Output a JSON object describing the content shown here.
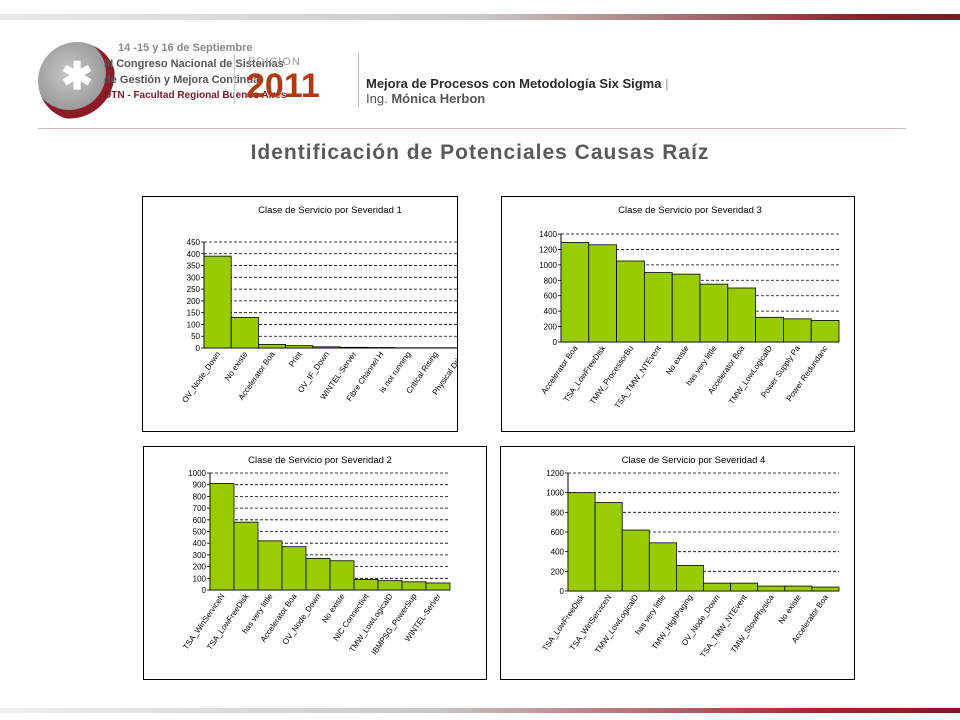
{
  "header": {
    "logo": {
      "line1": "14 -15 y 16 de Septiembre",
      "line2": "III Congreso Nacional de Sistemas",
      "line3": "de Gestión y Mejora Continua",
      "line4": "UTN - Facultad Regional Buenos Aires",
      "edition_label": "EDICION",
      "year": "2011"
    },
    "title": "Mejora de Procesos con Metodología Six Sigma",
    "separator": "|",
    "subtitle_prefix": "Ing.",
    "subtitle_name": "Mónica Herbon"
  },
  "slide_title": "Identificación de Potenciales Causas Raíz",
  "colors": {
    "bar": "#99cc00",
    "bar_stroke": "#000000",
    "accent": "#7a1a25",
    "title": "#5a5a5a"
  },
  "chart_data": [
    {
      "type": "bar",
      "title": "Clase de Servicio por Severidad 1",
      "categories": [
        "OV_Node_Down",
        "No existe",
        "Accelerator Boa",
        "Print",
        "OV_IF_Down",
        "WINTEL-Server",
        "Fibre Channel H",
        "is not running",
        "Critical Rising",
        "Physical Drive"
      ],
      "values": [
        390,
        130,
        15,
        10,
        5,
        3,
        2,
        1,
        1,
        1
      ],
      "ylim": [
        0,
        450
      ],
      "yticks": [
        "0",
        "50",
        "100",
        "150",
        "200",
        "250",
        "300",
        "350",
        "400",
        "450"
      ],
      "grid": true
    },
    {
      "type": "bar",
      "title": "Clase de Servicio por Severidad 3",
      "categories": [
        "Accelerator Boa",
        "TSA_LowFreeDisk",
        "TMW_ProcessorBu",
        "TSA_TMW_NTEvent",
        "No existe",
        "has very little",
        "Accelerator Boa",
        "TMW_LowLogicalD",
        "Power Supply Pa",
        "Power Redundanc"
      ],
      "values": [
        1290,
        1260,
        1050,
        900,
        880,
        750,
        700,
        320,
        300,
        280
      ],
      "ylim": [
        0,
        1400
      ],
      "yticks": [
        "0",
        "200",
        "400",
        "600",
        "800",
        "1000",
        "1200",
        "1400"
      ],
      "grid": true
    },
    {
      "type": "bar",
      "title": "Clase de Servicio por Severidad 2",
      "categories": [
        "TSA_WinServiceN",
        "TSA_LowFreeDisk",
        "has very little",
        "Accelerator Boa",
        "OV_Node_Down",
        "No existe",
        "NIC Connectivit",
        "TMW_LowLogicalD",
        "IBMPSG_PowerSup",
        "WINTEL-Server"
      ],
      "values": [
        910,
        580,
        420,
        370,
        270,
        250,
        90,
        80,
        70,
        60
      ],
      "ylim": [
        0,
        1000
      ],
      "yticks": [
        "0",
        "100",
        "200",
        "300",
        "400",
        "500",
        "600",
        "700",
        "800",
        "900",
        "1000"
      ],
      "grid": true
    },
    {
      "type": "bar",
      "title": "Clase de Servicio por Severidad 4",
      "categories": [
        "TSA_LowFreeDisk",
        "TSA_WinServiceN",
        "TMW_LowLogicalD",
        "has very little",
        "TMW_HighPaging",
        "OV_Node_Down",
        "TSA_TMW_NTEvent",
        "TMW_SlowPhysica",
        "No existe",
        "Accelerator Boa"
      ],
      "values": [
        1000,
        900,
        620,
        490,
        260,
        80,
        80,
        50,
        50,
        40
      ],
      "ylim": [
        0,
        1200
      ],
      "yticks": [
        "0",
        "200",
        "400",
        "600",
        "800",
        "1000",
        "1200"
      ],
      "grid": true
    }
  ]
}
